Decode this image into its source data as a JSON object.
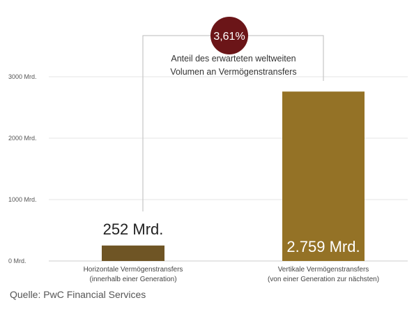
{
  "colors": {
    "bar_horizontal": "#6f5525",
    "bar_vertical": "#947226",
    "circle": "#6b1518",
    "bracket": "#bbbbbb",
    "grid": "#e6e6e6"
  },
  "chart_data": {
    "type": "bar",
    "categories": [
      {
        "line1": "Horizontale Vermögenstransfers",
        "line2": "(innerhalb einer Generation)"
      },
      {
        "line1": "Vertikale Vermögenstransfers",
        "line2": "(von einer Generation zur nächsten)"
      }
    ],
    "values": [
      252,
      2759
    ],
    "data_labels": [
      "252 Mrd.",
      "2.759 Mrd."
    ],
    "ylim": [
      0,
      3200
    ],
    "yticks": [
      {
        "value": 0,
        "label": "0 Mrd."
      },
      {
        "value": 1000,
        "label": "1000 Mrd."
      },
      {
        "value": 2000,
        "label": "2000 Mrd."
      },
      {
        "value": 3000,
        "label": "3000 Mrd."
      }
    ],
    "annotation": {
      "circle_text": "3,61%",
      "line1": "Anteil des erwarteten weltweiten",
      "line2": "Volumen an Vermögenstransfers"
    },
    "grid": true
  },
  "source": "Quelle: PwC Financial Services"
}
